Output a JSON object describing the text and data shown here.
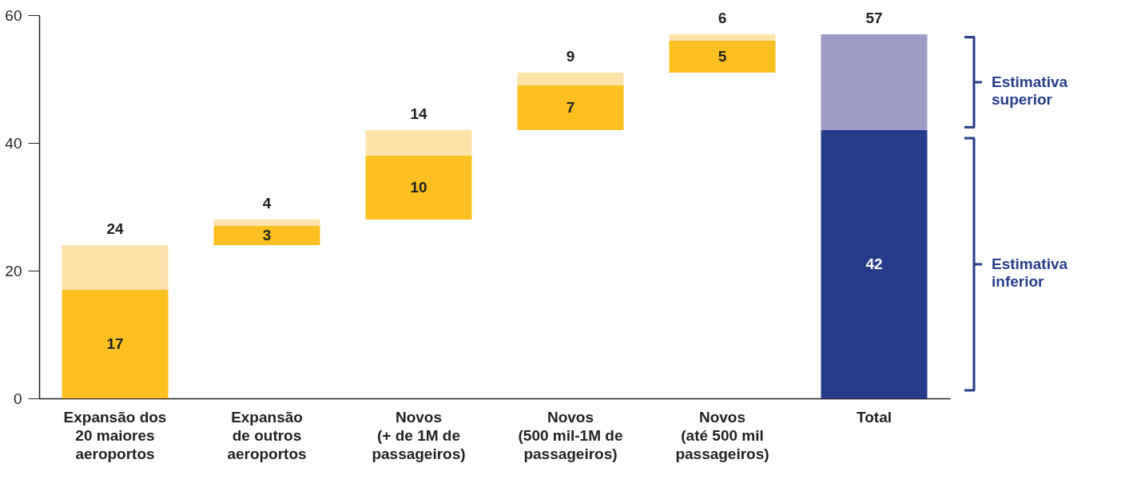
{
  "chart_data": {
    "type": "bar",
    "categories": [
      "Expansão dos\n20 maiores\naeroportos",
      "Expansão\nde outros\naeroportos",
      "Novos\n(+ de 1M de\npassageiros)",
      "Novos\n(500 mil-1M de\npassageiros)",
      "Novos\n(até 500 mil\npassageiros)",
      "Total"
    ],
    "series": [
      {
        "base": [
          0,
          24,
          28,
          42,
          51,
          0
        ],
        "colors": [
          "#fdc020",
          "#fdc020",
          "#fdc020",
          "#fdc020",
          "#fdc020",
          "#253c8a"
        ],
        "values": [
          17,
          3,
          10,
          7,
          5,
          42
        ],
        "value_labels": [
          "17",
          "3",
          "10",
          "7",
          "5",
          "42"
        ]
      },
      {
        "base": [
          17,
          27,
          38,
          49,
          56,
          42
        ],
        "colors": [
          "#fde3a9",
          "#fde3a9",
          "#fde3a9",
          "#fde3a9",
          "#fde3a9",
          "#9e9cc6"
        ],
        "values": [
          7,
          1,
          4,
          2,
          1,
          15
        ]
      }
    ],
    "totals": [
      "24",
      "4",
      "14",
      "9",
      "6",
      "57"
    ],
    "ylim": [
      0,
      60
    ],
    "yticks": [
      0,
      20,
      40,
      60
    ],
    "grid": false,
    "annotations": [
      "Estimativa\nsuperior",
      "Estimativa\ninferior"
    ]
  }
}
